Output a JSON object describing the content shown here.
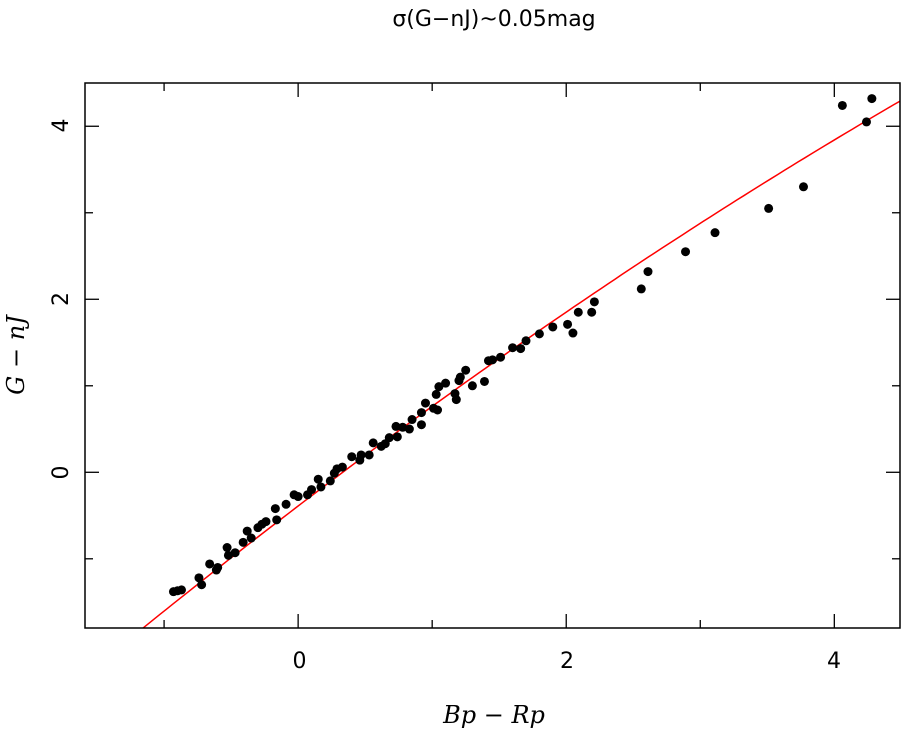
{
  "chart_data": {
    "type": "scatter",
    "title": "σ(G−nJ)~0.05mag",
    "xlabel": "Bp − Rp",
    "ylabel": "G − nJ",
    "xlim": [
      -1.59,
      4.49
    ],
    "ylim": [
      -1.8,
      4.5
    ],
    "xticks": [
      0,
      2,
      4
    ],
    "yticks": [
      0,
      2,
      4
    ],
    "xtick_labels": [
      "0",
      "2",
      "4"
    ],
    "ytick_labels": [
      "0",
      "2",
      "4"
    ],
    "minor_ticks": [
      -1,
      0,
      1,
      2,
      3,
      4
    ],
    "grid": false,
    "point_color": "#000000",
    "fit_color": "#ff0000",
    "fit": {
      "type": "quadratic",
      "coefficients": [
        -0.39,
        1.1835,
        -0.0314
      ]
    },
    "points": [
      [
        -0.93,
        -1.38
      ],
      [
        -0.87,
        -1.36
      ],
      [
        -0.9,
        -1.37
      ],
      [
        -0.74,
        -1.22
      ],
      [
        -0.72,
        -1.3
      ],
      [
        -0.66,
        -1.06
      ],
      [
        -0.61,
        -1.13
      ],
      [
        -0.6,
        -1.1
      ],
      [
        -0.53,
        -0.87
      ],
      [
        -0.47,
        -0.93
      ],
      [
        -0.52,
        -0.96
      ],
      [
        -0.41,
        -0.81
      ],
      [
        -0.38,
        -0.68
      ],
      [
        -0.35,
        -0.76
      ],
      [
        -0.3,
        -0.64
      ],
      [
        -0.24,
        -0.57
      ],
      [
        -0.27,
        -0.6
      ],
      [
        -0.17,
        -0.42
      ],
      [
        -0.16,
        -0.55
      ],
      [
        -0.09,
        -0.37
      ],
      [
        -0.03,
        -0.26
      ],
      [
        0.0,
        -0.28
      ],
      [
        0.07,
        -0.26
      ],
      [
        0.1,
        -0.2
      ],
      [
        0.15,
        -0.08
      ],
      [
        0.17,
        -0.17
      ],
      [
        0.24,
        -0.1
      ],
      [
        0.27,
        -0.01
      ],
      [
        0.29,
        0.04
      ],
      [
        0.33,
        0.06
      ],
      [
        0.4,
        0.18
      ],
      [
        0.46,
        0.14
      ],
      [
        0.47,
        0.2
      ],
      [
        0.53,
        0.2
      ],
      [
        0.56,
        0.34
      ],
      [
        0.62,
        0.3
      ],
      [
        0.65,
        0.33
      ],
      [
        0.68,
        0.4
      ],
      [
        0.74,
        0.41
      ],
      [
        0.73,
        0.53
      ],
      [
        0.78,
        0.52
      ],
      [
        0.83,
        0.5
      ],
      [
        0.85,
        0.61
      ],
      [
        0.92,
        0.55
      ],
      [
        0.92,
        0.69
      ],
      [
        0.95,
        0.8
      ],
      [
        1.01,
        0.74
      ],
      [
        1.03,
        0.9
      ],
      [
        1.04,
        0.72
      ],
      [
        1.05,
        0.99
      ],
      [
        1.1,
        1.03
      ],
      [
        1.17,
        0.91
      ],
      [
        1.18,
        0.84
      ],
      [
        1.2,
        1.06
      ],
      [
        1.21,
        1.1
      ],
      [
        1.25,
        1.18
      ],
      [
        1.3,
        1.0
      ],
      [
        1.39,
        1.05
      ],
      [
        1.42,
        1.29
      ],
      [
        1.45,
        1.3
      ],
      [
        1.51,
        1.33
      ],
      [
        1.6,
        1.44
      ],
      [
        1.66,
        1.43
      ],
      [
        1.7,
        1.52
      ],
      [
        1.8,
        1.6
      ],
      [
        1.9,
        1.68
      ],
      [
        2.01,
        1.71
      ],
      [
        2.05,
        1.61
      ],
      [
        2.09,
        1.85
      ],
      [
        2.19,
        1.85
      ],
      [
        2.21,
        1.97
      ],
      [
        2.56,
        2.12
      ],
      [
        2.61,
        2.32
      ],
      [
        2.89,
        2.55
      ],
      [
        3.11,
        2.77
      ],
      [
        3.51,
        3.05
      ],
      [
        3.77,
        3.3
      ],
      [
        4.06,
        4.24
      ],
      [
        4.24,
        4.05
      ],
      [
        4.28,
        4.32
      ]
    ]
  }
}
